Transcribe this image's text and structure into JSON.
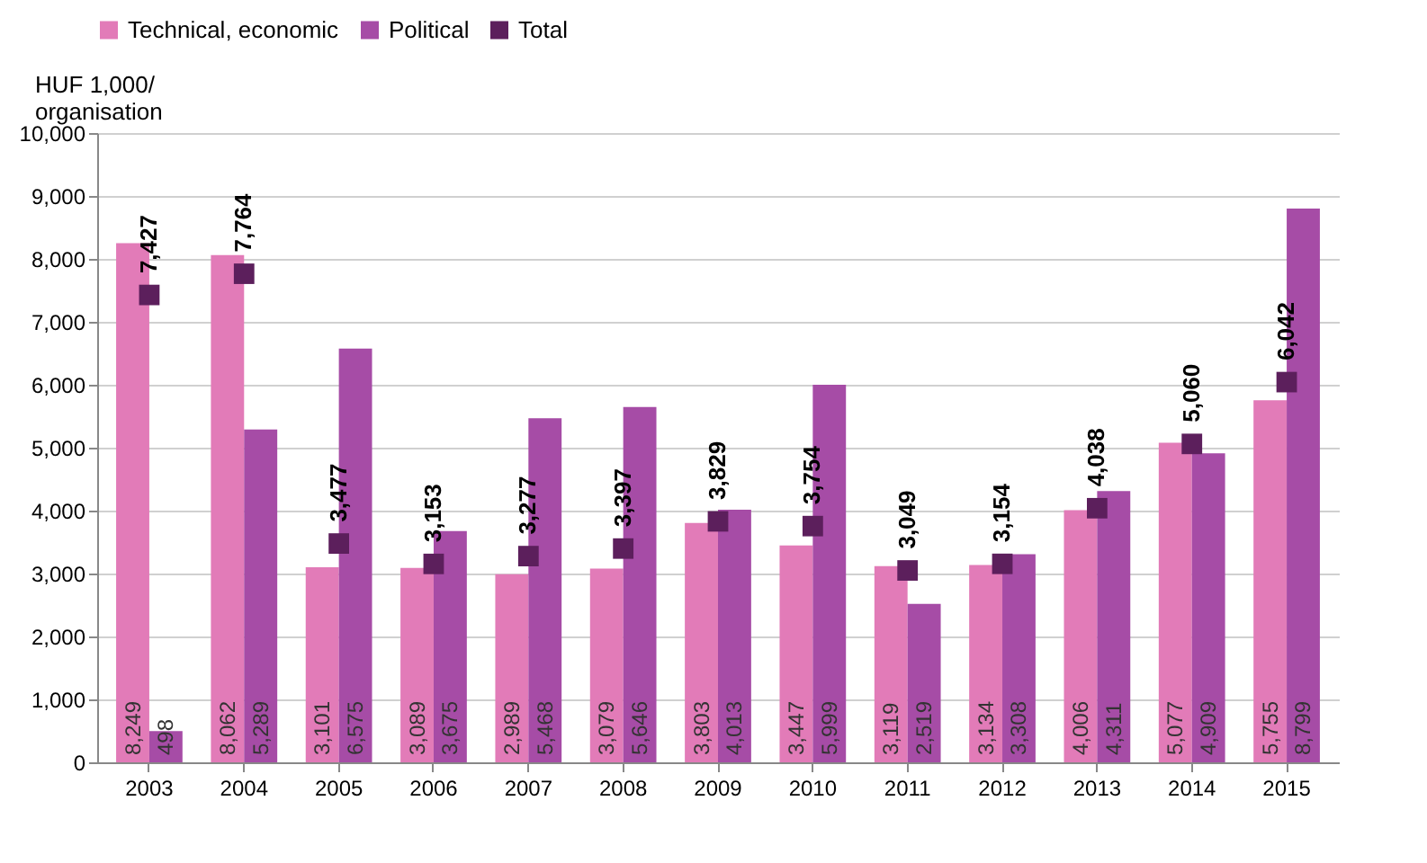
{
  "chart_data": {
    "type": "bar",
    "ylabel": "HUF 1,000/\norganisation",
    "categories": [
      "2003",
      "2004",
      "2005",
      "2006",
      "2007",
      "2008",
      "2009",
      "2010",
      "2011",
      "2012",
      "2013",
      "2014",
      "2015"
    ],
    "series": [
      {
        "name": "Technical, economic",
        "color": "#e27bb8",
        "values": [
          8249,
          8062,
          3101,
          3089,
          2989,
          3079,
          3803,
          3447,
          3119,
          3134,
          4006,
          5077,
          5755
        ],
        "value_labels": [
          "8,249",
          "8,062",
          "3,101",
          "3,089",
          "2,989",
          "3,079",
          "3,803",
          "3,447",
          "3,119",
          "3,134",
          "4,006",
          "5,077",
          "5,755"
        ]
      },
      {
        "name": "Political",
        "color": "#a64ca6",
        "values": [
          498,
          5289,
          6575,
          3675,
          5468,
          5646,
          4013,
          5999,
          2519,
          3308,
          4311,
          4909,
          8799
        ],
        "value_labels": [
          "498",
          "5,289",
          "6,575",
          "3,675",
          "5,468",
          "5,646",
          "4,013",
          "5,999",
          "2,519",
          "3,308",
          "4,311",
          "4,909",
          "8,799"
        ]
      },
      {
        "name": "Total",
        "type": "scatter",
        "marker": "square",
        "color": "#5c1f5c",
        "values": [
          7427,
          7764,
          3477,
          3153,
          3277,
          3397,
          3829,
          3754,
          3049,
          3154,
          4038,
          5060,
          6042
        ],
        "value_labels": [
          "7,427",
          "7,764",
          "3,477",
          "3,153",
          "3,277",
          "3,397",
          "3,829",
          "3,754",
          "3,049",
          "3,154",
          "4,038",
          "5,060",
          "6,042"
        ]
      }
    ],
    "ylim": [
      0,
      10000
    ],
    "yticks": [
      {
        "value": 0,
        "label": "0"
      },
      {
        "value": 1000,
        "label": "1,000"
      },
      {
        "value": 2000,
        "label": "2,000"
      },
      {
        "value": 3000,
        "label": "3,000"
      },
      {
        "value": 4000,
        "label": "4,000"
      },
      {
        "value": 5000,
        "label": "5,000"
      },
      {
        "value": 6000,
        "label": "6,000"
      },
      {
        "value": 7000,
        "label": "7,000"
      },
      {
        "value": 8000,
        "label": "8,000"
      },
      {
        "value": 9000,
        "label": "9,000"
      },
      {
        "value": 10000,
        "label": "10,000"
      }
    ],
    "grid": "y",
    "legend": "top"
  }
}
